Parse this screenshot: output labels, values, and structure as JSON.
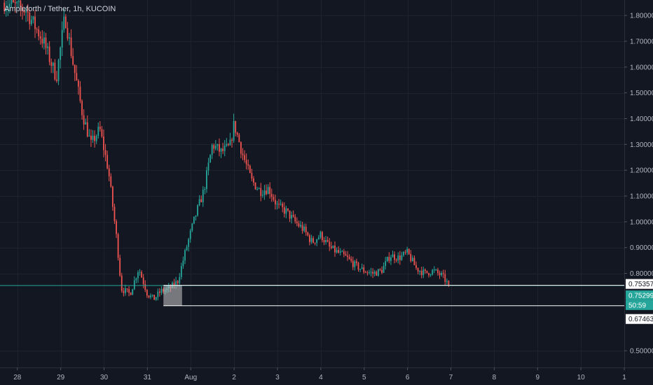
{
  "header": {
    "title": "Ampleforth / Tether, 1h, KUCOIN"
  },
  "chart_data": {
    "type": "candlestick",
    "title": "Ampleforth / Tether, 1h, KUCOIN",
    "ylim": [
      0.435,
      1.86
    ],
    "y_ticks": [
      "1.80000",
      "1.70000",
      "1.60000",
      "1.50000",
      "1.40000",
      "1.30000",
      "1.20000",
      "1.10000",
      "1.00000",
      "0.90000",
      "0.80000",
      "0.50000"
    ],
    "y_tick_values": [
      1.8,
      1.7,
      1.6,
      1.5,
      1.4,
      1.3,
      1.2,
      1.1,
      1.0,
      0.9,
      0.8,
      0.5
    ],
    "x_ticks": [
      "28",
      "29",
      "30",
      "31",
      "Aug",
      "2",
      "3",
      "4",
      "5",
      "6",
      "7",
      "8",
      "9",
      "10",
      "1"
    ],
    "x_tick_days": [
      28,
      29,
      30,
      31,
      32,
      33,
      34,
      35,
      36,
      37,
      38,
      39,
      40,
      41,
      42
    ],
    "xlim_days": [
      27.6,
      42.0
    ],
    "price_path": [
      {
        "day": 27.7,
        "price": 1.85
      },
      {
        "day": 28.2,
        "price": 1.82
      },
      {
        "day": 28.6,
        "price": 1.7
      },
      {
        "day": 28.9,
        "price": 1.56
      },
      {
        "day": 29.1,
        "price": 1.8
      },
      {
        "day": 29.3,
        "price": 1.6
      },
      {
        "day": 29.5,
        "price": 1.42
      },
      {
        "day": 29.7,
        "price": 1.3
      },
      {
        "day": 29.9,
        "price": 1.36
      },
      {
        "day": 30.1,
        "price": 1.2
      },
      {
        "day": 30.3,
        "price": 0.92
      },
      {
        "day": 30.4,
        "price": 0.74
      },
      {
        "day": 30.6,
        "price": 0.72
      },
      {
        "day": 30.8,
        "price": 0.82
      },
      {
        "day": 31.0,
        "price": 0.72
      },
      {
        "day": 31.15,
        "price": 0.7
      },
      {
        "day": 31.3,
        "price": 0.73
      },
      {
        "day": 31.5,
        "price": 0.74
      },
      {
        "day": 31.7,
        "price": 0.77
      },
      {
        "day": 31.9,
        "price": 0.9
      },
      {
        "day": 32.1,
        "price": 1.02
      },
      {
        "day": 32.3,
        "price": 1.12
      },
      {
        "day": 32.5,
        "price": 1.3
      },
      {
        "day": 32.7,
        "price": 1.27
      },
      {
        "day": 32.9,
        "price": 1.29
      },
      {
        "day": 33.0,
        "price": 1.38
      },
      {
        "day": 33.2,
        "price": 1.26
      },
      {
        "day": 33.4,
        "price": 1.16
      },
      {
        "day": 33.6,
        "price": 1.12
      },
      {
        "day": 33.8,
        "price": 1.13
      },
      {
        "day": 34.0,
        "price": 1.06
      },
      {
        "day": 34.2,
        "price": 1.04
      },
      {
        "day": 34.4,
        "price": 1.0
      },
      {
        "day": 34.6,
        "price": 0.97
      },
      {
        "day": 34.8,
        "price": 0.92
      },
      {
        "day": 35.0,
        "price": 0.95
      },
      {
        "day": 35.2,
        "price": 0.9
      },
      {
        "day": 35.4,
        "price": 0.88
      },
      {
        "day": 35.6,
        "price": 0.86
      },
      {
        "day": 35.8,
        "price": 0.83
      },
      {
        "day": 36.0,
        "price": 0.81
      },
      {
        "day": 36.2,
        "price": 0.8
      },
      {
        "day": 36.4,
        "price": 0.81
      },
      {
        "day": 36.6,
        "price": 0.87
      },
      {
        "day": 36.8,
        "price": 0.86
      },
      {
        "day": 37.0,
        "price": 0.88
      },
      {
        "day": 37.2,
        "price": 0.82
      },
      {
        "day": 37.4,
        "price": 0.8
      },
      {
        "day": 37.6,
        "price": 0.81
      },
      {
        "day": 37.8,
        "price": 0.79
      },
      {
        "day": 37.95,
        "price": 0.755
      }
    ],
    "seed": 7,
    "price_lines": [
      {
        "label": "0.75357",
        "value": 0.75357,
        "color": "#ffffff",
        "text_color": "#131722"
      },
      {
        "label": "0.67463",
        "value": 0.67463,
        "color": "#ffffff",
        "text_color": "#131722"
      }
    ],
    "last_price": {
      "label": "0.75299",
      "value": 0.75299,
      "color": "#26a69a",
      "countdown": "50:59"
    },
    "highlight_box": {
      "day_start": 31.37,
      "day_end": 31.8,
      "y_low": 0.67463,
      "y_high": 0.75357
    },
    "up_color": "#26a69a",
    "down_color": "#ef5350",
    "grid": true
  }
}
